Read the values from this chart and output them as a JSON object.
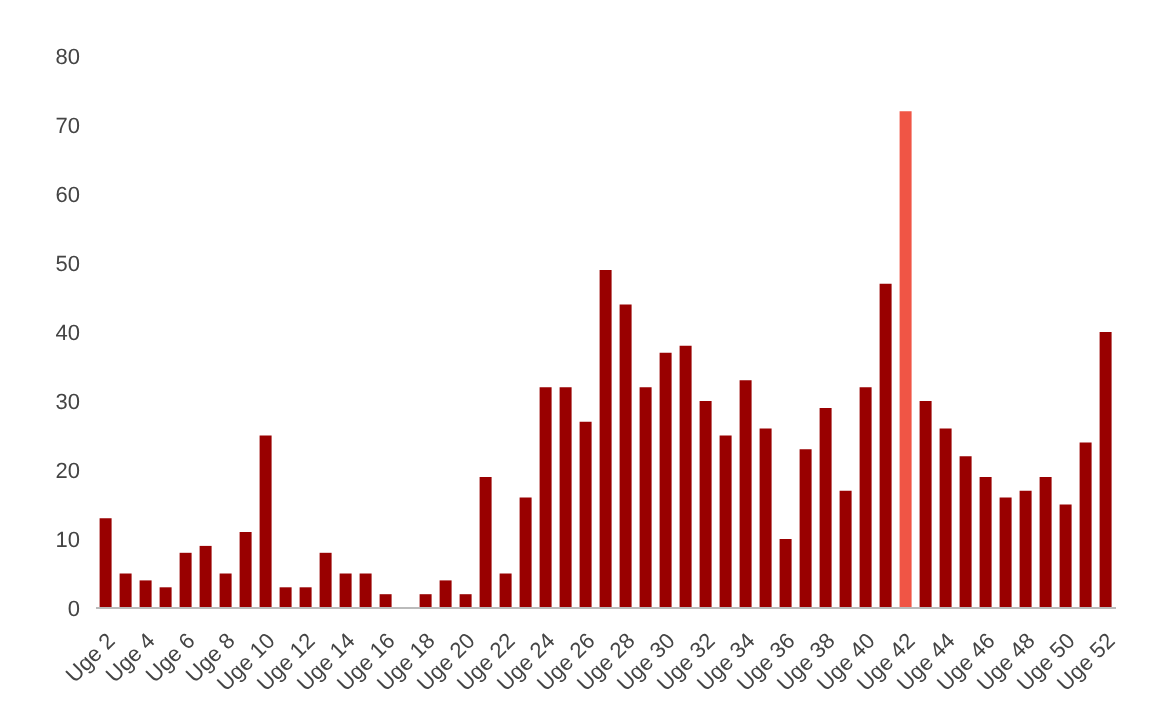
{
  "chart_data": {
    "type": "bar",
    "categories": [
      "Uge 2",
      null,
      "Uge 4",
      null,
      "Uge 6",
      null,
      "Uge 8",
      null,
      "Uge 10",
      null,
      "Uge 12",
      null,
      "Uge 14",
      null,
      "Uge 16",
      null,
      "Uge 18",
      null,
      "Uge 20",
      null,
      "Uge 22",
      null,
      "Uge 24",
      null,
      "Uge 26",
      null,
      "Uge 28",
      null,
      "Uge 30",
      null,
      "Uge 32",
      null,
      "Uge 34",
      null,
      "Uge 36",
      null,
      "Uge 38",
      null,
      "Uge 40",
      null,
      "Uge 42",
      null,
      "Uge 44",
      null,
      "Uge 46",
      null,
      "Uge 48",
      null,
      "Uge 50",
      null,
      "Uge 52"
    ],
    "values": [
      13,
      5,
      4,
      3,
      8,
      9,
      5,
      11,
      25,
      3,
      3,
      8,
      5,
      5,
      2,
      0,
      2,
      4,
      2,
      19,
      5,
      16,
      32,
      32,
      27,
      49,
      44,
      32,
      37,
      38,
      30,
      25,
      33,
      26,
      10,
      23,
      29,
      17,
      32,
      47,
      72,
      30,
      26,
      22,
      19,
      16,
      17,
      19,
      15,
      24,
      40
    ],
    "colors": [
      "#990000",
      "#990000",
      "#990000",
      "#990000",
      "#990000",
      "#990000",
      "#990000",
      "#990000",
      "#990000",
      "#990000",
      "#990000",
      "#990000",
      "#990000",
      "#990000",
      "#990000",
      "#990000",
      "#990000",
      "#990000",
      "#990000",
      "#990000",
      "#990000",
      "#990000",
      "#990000",
      "#990000",
      "#990000",
      "#990000",
      "#990000",
      "#990000",
      "#990000",
      "#990000",
      "#990000",
      "#990000",
      "#990000",
      "#990000",
      "#990000",
      "#990000",
      "#990000",
      "#990000",
      "#990000",
      "#990000",
      "#f05545",
      "#990000",
      "#990000",
      "#990000",
      "#990000",
      "#990000",
      "#990000",
      "#990000",
      "#990000",
      "#990000",
      "#990000"
    ],
    "ylim": [
      0,
      80
    ],
    "yticks": [
      0,
      10,
      20,
      30,
      40,
      50,
      60,
      70,
      80
    ],
    "grid": false
  }
}
